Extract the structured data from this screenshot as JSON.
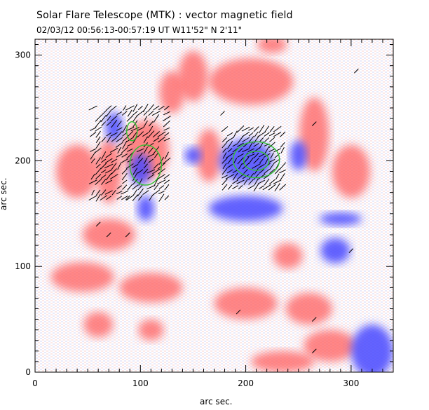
{
  "figure": {
    "title": "Solar Flare Telescope (MTK) : vector magnetic field",
    "subtitle": "02/03/12   00:56:13-00:57:19 UT     W11'52\"   N 2'11\"",
    "xlabel": "arc sec.",
    "ylabel": "arc sec.",
    "xticks": [
      "0",
      "100",
      "200",
      "300"
    ],
    "yticks": [
      "0",
      "100",
      "200",
      "300"
    ],
    "colors": {
      "positive_polarity": "#ff6060",
      "negative_polarity": "#4848ff",
      "contour": "#30c030",
      "vector": "#000000",
      "frame": "#000000"
    }
  },
  "chart_data": {
    "type": "heatmap",
    "xlim": [
      0,
      340
    ],
    "ylim": [
      0,
      315
    ],
    "x_ticks": [
      0,
      100,
      200,
      300
    ],
    "y_ticks": [
      0,
      100,
      200,
      300
    ],
    "positive_regions": [
      {
        "x": 105,
        "y": 210,
        "rx": 22,
        "ry": 28
      },
      {
        "x": 70,
        "y": 190,
        "rx": 12,
        "ry": 30
      },
      {
        "x": 205,
        "y": 275,
        "rx": 40,
        "ry": 22
      },
      {
        "x": 265,
        "y": 225,
        "rx": 14,
        "ry": 35
      },
      {
        "x": 165,
        "y": 205,
        "rx": 12,
        "ry": 25
      },
      {
        "x": 150,
        "y": 280,
        "rx": 14,
        "ry": 24
      },
      {
        "x": 130,
        "y": 265,
        "rx": 12,
        "ry": 20
      },
      {
        "x": 70,
        "y": 130,
        "rx": 25,
        "ry": 15
      },
      {
        "x": 45,
        "y": 90,
        "rx": 30,
        "ry": 14
      },
      {
        "x": 110,
        "y": 80,
        "rx": 30,
        "ry": 14
      },
      {
        "x": 200,
        "y": 65,
        "rx": 30,
        "ry": 15
      },
      {
        "x": 260,
        "y": 60,
        "rx": 22,
        "ry": 15
      },
      {
        "x": 280,
        "y": 25,
        "rx": 25,
        "ry": 15
      },
      {
        "x": 235,
        "y": 10,
        "rx": 30,
        "ry": 10
      },
      {
        "x": 110,
        "y": 40,
        "rx": 12,
        "ry": 10
      },
      {
        "x": 60,
        "y": 45,
        "rx": 14,
        "ry": 12
      },
      {
        "x": 240,
        "y": 110,
        "rx": 14,
        "ry": 12
      },
      {
        "x": 225,
        "y": 310,
        "rx": 14,
        "ry": 8
      },
      {
        "x": 300,
        "y": 190,
        "rx": 18,
        "ry": 25
      },
      {
        "x": 40,
        "y": 190,
        "rx": 20,
        "ry": 25
      }
    ],
    "negative_regions": [
      {
        "x": 200,
        "y": 200,
        "rx": 25,
        "ry": 20
      },
      {
        "x": 100,
        "y": 192,
        "rx": 10,
        "ry": 15
      },
      {
        "x": 75,
        "y": 232,
        "rx": 8,
        "ry": 14
      },
      {
        "x": 105,
        "y": 155,
        "rx": 8,
        "ry": 12
      },
      {
        "x": 200,
        "y": 155,
        "rx": 35,
        "ry": 12
      },
      {
        "x": 250,
        "y": 205,
        "rx": 8,
        "ry": 14
      },
      {
        "x": 150,
        "y": 205,
        "rx": 8,
        "ry": 8
      },
      {
        "x": 320,
        "y": 20,
        "rx": 20,
        "ry": 25
      },
      {
        "x": 285,
        "y": 115,
        "rx": 14,
        "ry": 12
      },
      {
        "x": 290,
        "y": 145,
        "rx": 20,
        "ry": 6
      }
    ],
    "contours": [
      {
        "x": 92,
        "y": 228,
        "rx": 5,
        "ry": 9
      },
      {
        "x": 105,
        "y": 196,
        "rx": 15,
        "ry": 19
      },
      {
        "x": 210,
        "y": 201,
        "rx": 22,
        "ry": 17
      },
      {
        "x": 210,
        "y": 200,
        "rx": 12,
        "ry": 9
      }
    ],
    "vector_groups": [
      {
        "x0": 55,
        "x1": 125,
        "y0": 165,
        "y1": 250,
        "density": 0.7
      },
      {
        "x0": 180,
        "x1": 235,
        "y0": 175,
        "y1": 230,
        "density": 0.8
      }
    ],
    "isolated_vectors": [
      {
        "x": 60,
        "y": 140
      },
      {
        "x": 70,
        "y": 130
      },
      {
        "x": 88,
        "y": 130
      },
      {
        "x": 178,
        "y": 245
      },
      {
        "x": 265,
        "y": 235
      },
      {
        "x": 300,
        "y": 115
      },
      {
        "x": 265,
        "y": 20
      },
      {
        "x": 265,
        "y": 50
      },
      {
        "x": 193,
        "y": 57
      },
      {
        "x": 305,
        "y": 285
      },
      {
        "x": 88,
        "y": 165
      }
    ]
  }
}
